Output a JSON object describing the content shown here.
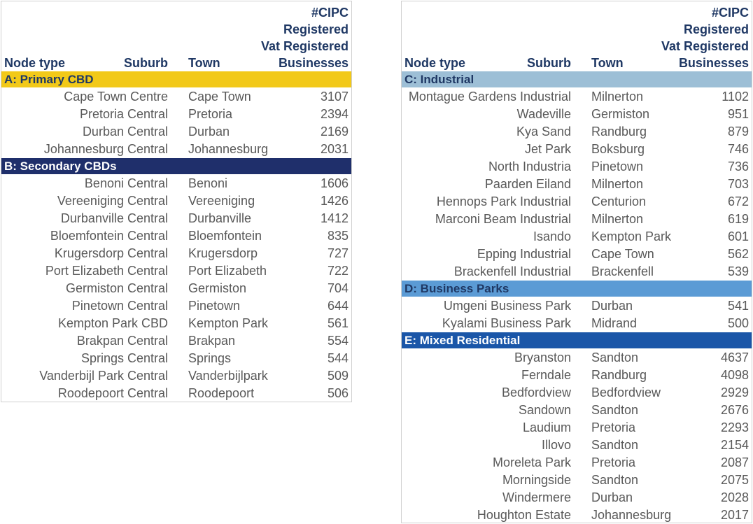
{
  "headers": {
    "node_type": "Node type",
    "suburb": "Suburb",
    "town": "Town",
    "metric_lines": [
      "#CIPC",
      "Registered",
      "Vat Registered",
      "Businesses"
    ]
  },
  "colors": {
    "header_text": "#1f3864",
    "band_a": "#f2c919",
    "band_b": "#1f2f6b",
    "band_c": "#9dbfd6",
    "band_d": "#5b9bd5",
    "band_e": "#1a56a8",
    "row_text": "#595959"
  },
  "left_panel": {
    "groups": [
      {
        "label": "A: Primary CBD",
        "style": "band_a",
        "rows": [
          {
            "suburb": "Cape Town Centre",
            "town": "Cape Town",
            "count": "3107"
          },
          {
            "suburb": "Pretoria Central",
            "town": "Pretoria",
            "count": "2394"
          },
          {
            "suburb": "Durban Central",
            "town": "Durban",
            "count": "2169"
          },
          {
            "suburb": "Johannesburg Central",
            "town": "Johannesburg",
            "count": "2031"
          }
        ]
      },
      {
        "label": "B: Secondary CBDs",
        "style": "band_b",
        "rows": [
          {
            "suburb": "Benoni Central",
            "town": "Benoni",
            "count": "1606"
          },
          {
            "suburb": "Vereeniging Central",
            "town": "Vereeniging",
            "count": "1426"
          },
          {
            "suburb": "Durbanville Central",
            "town": "Durbanville",
            "count": "1412"
          },
          {
            "suburb": "Bloemfontein Central",
            "town": "Bloemfontein",
            "count": "835"
          },
          {
            "suburb": "Krugersdorp Central",
            "town": "Krugersdorp",
            "count": "727"
          },
          {
            "suburb": "Port Elizabeth Central",
            "town": "Port Elizabeth",
            "count": "722"
          },
          {
            "suburb": "Germiston Central",
            "town": "Germiston",
            "count": "704"
          },
          {
            "suburb": "Pinetown Central",
            "town": "Pinetown",
            "count": "644"
          },
          {
            "suburb": "Kempton Park CBD",
            "town": "Kempton Park",
            "count": "561"
          },
          {
            "suburb": "Brakpan Central",
            "town": "Brakpan",
            "count": "554"
          },
          {
            "suburb": "Springs Central",
            "town": "Springs",
            "count": "544"
          },
          {
            "suburb": "Vanderbijl Park Central",
            "town": "Vanderbijlpark",
            "count": "509"
          },
          {
            "suburb": "Roodepoort Central",
            "town": "Roodepoort",
            "count": "506"
          }
        ]
      }
    ]
  },
  "right_panel": {
    "groups": [
      {
        "label": "C: Industrial",
        "style": "band_c",
        "rows": [
          {
            "suburb": "Montague Gardens Industrial",
            "town": "Milnerton",
            "count": "1102"
          },
          {
            "suburb": "Wadeville",
            "town": "Germiston",
            "count": "951"
          },
          {
            "suburb": "Kya Sand",
            "town": "Randburg",
            "count": "879"
          },
          {
            "suburb": "Jet Park",
            "town": "Boksburg",
            "count": "746"
          },
          {
            "suburb": "North Industria",
            "town": "Pinetown",
            "count": "736"
          },
          {
            "suburb": "Paarden Eiland",
            "town": "Milnerton",
            "count": "703"
          },
          {
            "suburb": "Hennops Park Industrial",
            "town": "Centurion",
            "count": "672"
          },
          {
            "suburb": "Marconi Beam Industrial",
            "town": "Milnerton",
            "count": "619"
          },
          {
            "suburb": "Isando",
            "town": "Kempton Park",
            "count": "601"
          },
          {
            "suburb": "Epping Industrial",
            "town": "Cape Town",
            "count": "562"
          },
          {
            "suburb": "Brackenfell Industrial",
            "town": "Brackenfell",
            "count": "539"
          }
        ]
      },
      {
        "label": "D: Business Parks",
        "style": "band_d",
        "rows": [
          {
            "suburb": "Umgeni Business Park",
            "town": "Durban",
            "count": "541"
          },
          {
            "suburb": "Kyalami Business Park",
            "town": "Midrand",
            "count": "500"
          }
        ]
      },
      {
        "label": "E: Mixed Residential",
        "style": "band_e",
        "rows": [
          {
            "suburb": "Bryanston",
            "town": "Sandton",
            "count": "4637"
          },
          {
            "suburb": "Ferndale",
            "town": "Randburg",
            "count": "4098"
          },
          {
            "suburb": "Bedfordview",
            "town": "Bedfordview",
            "count": "2929"
          },
          {
            "suburb": "Sandown",
            "town": "Sandton",
            "count": "2676"
          },
          {
            "suburb": "Laudium",
            "town": "Pretoria",
            "count": "2293"
          },
          {
            "suburb": "Illovo",
            "town": "Sandton",
            "count": "2154"
          },
          {
            "suburb": "Moreleta Park",
            "town": "Pretoria",
            "count": "2087"
          },
          {
            "suburb": "Morningside",
            "town": "Sandton",
            "count": "2075"
          },
          {
            "suburb": "Windermere",
            "town": "Durban",
            "count": "2028"
          },
          {
            "suburb": "Houghton Estate",
            "town": "Johannesburg",
            "count": "2017"
          }
        ]
      }
    ]
  }
}
